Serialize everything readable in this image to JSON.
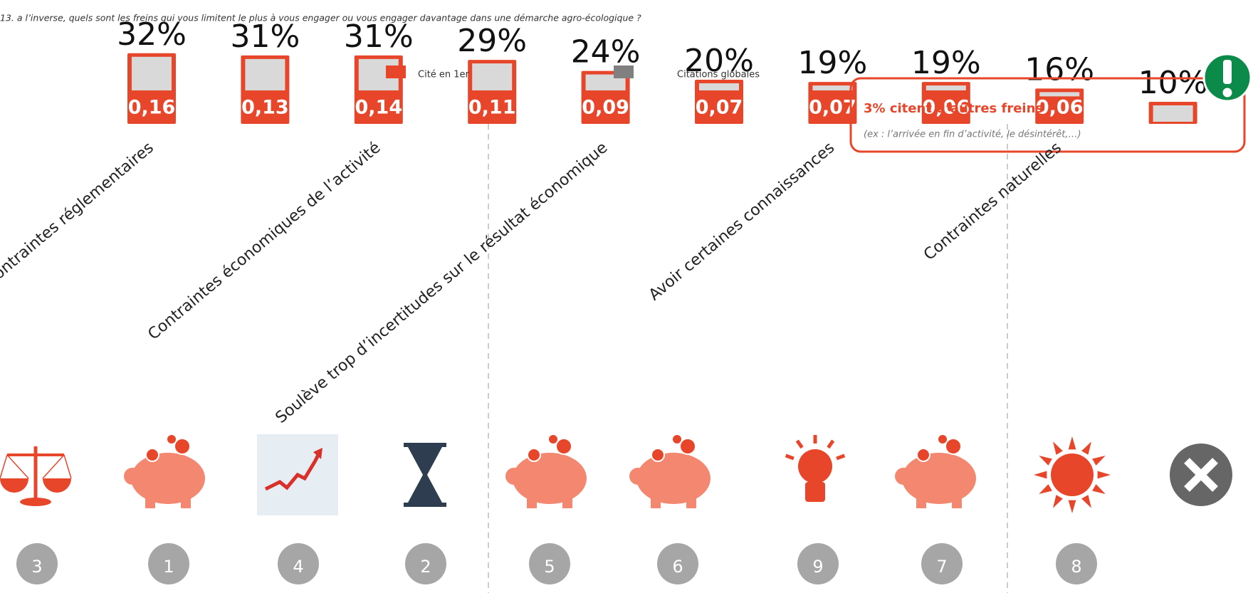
{
  "chart_data": {
    "type": "bar",
    "title": "13. a l’inverse, quels sont les freins qui vous limitent le plus à vous engager ou vous engager davantage dans une démarche agro-écologique ?",
    "categories": [
      "Contraintes réglementaires",
      null,
      "Contraintes économiques de l’activité",
      null,
      "Soulève trop d’incertitudes sur le résultat économique",
      null,
      "Avoir certaines connaissances",
      null,
      "Contraintes naturelles",
      null
    ],
    "series": [
      {
        "name": "Citations globales",
        "color": "#808080",
        "values": [
          32,
          31,
          31,
          29,
          24,
          20,
          19,
          19,
          16,
          10
        ],
        "value_labels": [
          "32%",
          "31%",
          "31%",
          "29%",
          "24%",
          "20%",
          "19%",
          "19%",
          "16%",
          "10%"
        ]
      },
      {
        "name": "Cité en 1er",
        "color": "#e8462a",
        "values": [
          0.16,
          0.13,
          0.14,
          0.11,
          0.09,
          0.07,
          0.07,
          0.06,
          0.06,
          null
        ],
        "value_labels": [
          "0,16",
          "0,13",
          "0,14",
          "0,11",
          "0,09",
          "0,07",
          "0,07",
          "0,06",
          "0,06",
          null
        ]
      }
    ],
    "ranks": [
      3,
      1,
      4,
      2,
      5,
      6,
      9,
      7,
      8,
      null
    ],
    "annotations": [
      "3% citent d’autres freins",
      "(ex : l’arrivée en fin d’activité, le désintérêt,…)"
    ]
  }
}
